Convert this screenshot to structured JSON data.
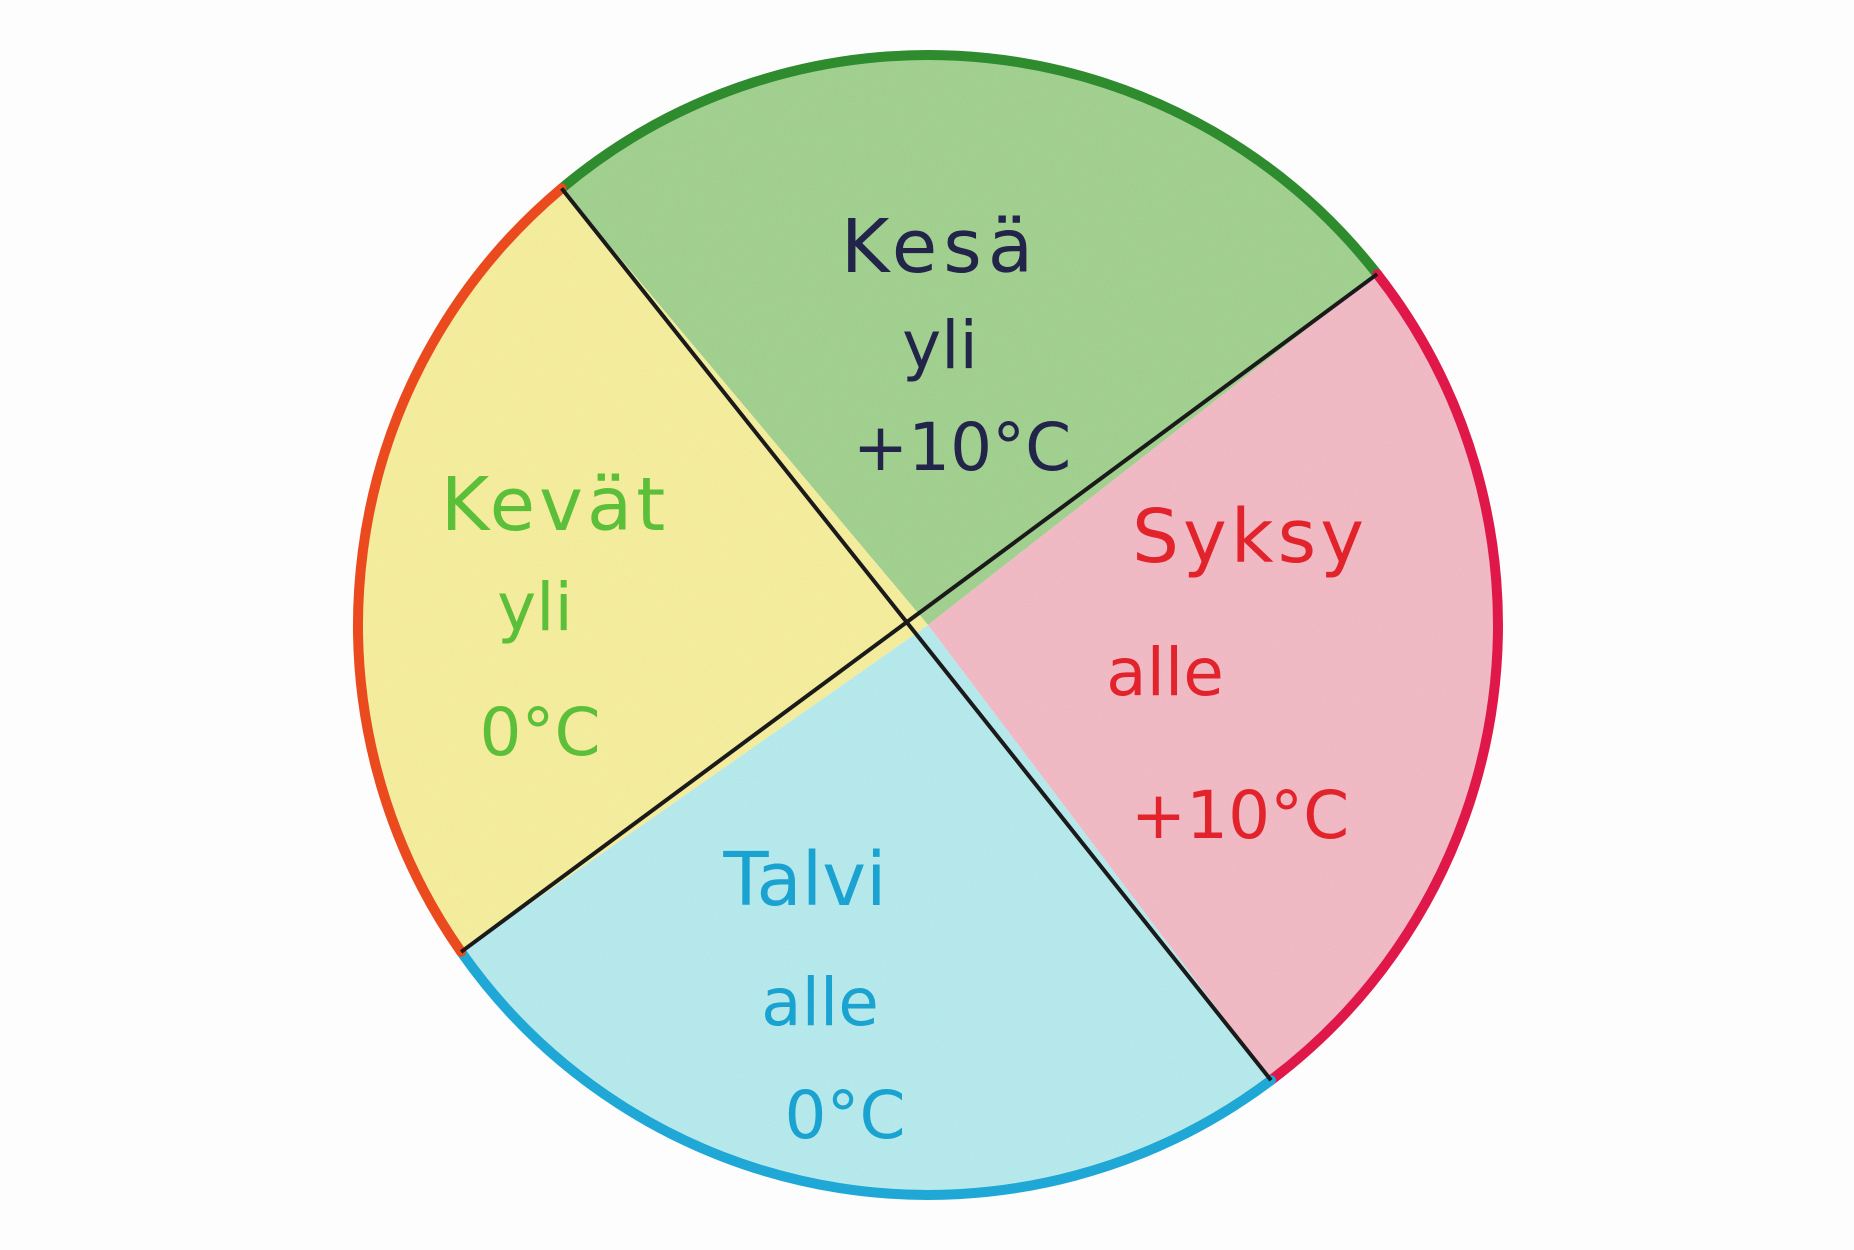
{
  "diagram": {
    "seasons": [
      {
        "id": "kesa",
        "name": "Kesä",
        "relation": "yli",
        "threshold": "+10°C",
        "fill": "#9fd18a",
        "rim": "#2e8b2e",
        "text_color": "#22244a"
      },
      {
        "id": "syksy",
        "name": "Syksy",
        "relation": "alle",
        "threshold": "+10°C",
        "fill": "#f4b9c4",
        "rim": "#e0184a",
        "text_color": "#e3232b"
      },
      {
        "id": "talvi",
        "name": "Talvi",
        "relation": "alle",
        "threshold": "0°C",
        "fill": "#b5ecef",
        "rim": "#1fa7d6",
        "text_color": "#1aa3d0"
      },
      {
        "id": "kevat",
        "name": "Kevät",
        "relation": "yli",
        "threshold": "0°C",
        "fill": "#f8f09a",
        "rim": "#ea4a1e",
        "text_color": "#5cbf3a"
      }
    ],
    "divider_color": "#1a1a1a",
    "background": "#fdfdfd"
  }
}
